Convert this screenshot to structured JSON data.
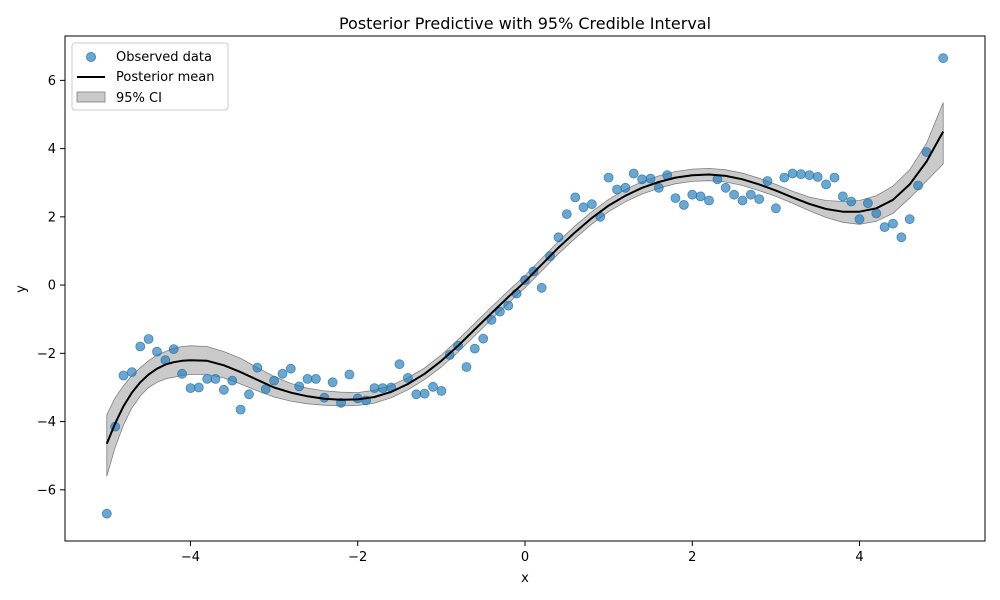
{
  "chart_data": {
    "type": "scatter",
    "title": "Posterior Predictive with 95% Credible Interval",
    "xlabel": "x",
    "ylabel": "y",
    "xlim": [
      -5.5,
      5.5
    ],
    "ylim": [
      -7.5,
      7.3
    ],
    "grid": false,
    "legend_position": "top-left",
    "x_ticks": [
      -4,
      -2,
      0,
      2,
      4
    ],
    "y_ticks": [
      -6,
      -4,
      -2,
      0,
      2,
      4,
      6
    ],
    "x_tick_labels": [
      "−4",
      "−2",
      "0",
      "2",
      "4"
    ],
    "y_tick_labels": [
      "−6",
      "−4",
      "−2",
      "0",
      "2",
      "4",
      "6"
    ],
    "legend": [
      {
        "label": "Observed data",
        "kind": "marker"
      },
      {
        "label": "Posterior mean",
        "kind": "line"
      },
      {
        "label": "95% CI",
        "kind": "patch"
      }
    ],
    "colors": {
      "observed": "#1f77b4",
      "mean": "#000000",
      "ci_fill": "#bdbdbd",
      "ci_edge": "#808080"
    },
    "observed": {
      "name": "Observed data",
      "points": [
        [
          -5.0,
          -6.7
        ],
        [
          -4.9,
          -4.15
        ],
        [
          -4.8,
          -2.65
        ],
        [
          -4.7,
          -2.55
        ],
        [
          -4.6,
          -1.8
        ],
        [
          -4.5,
          -1.58
        ],
        [
          -4.4,
          -1.95
        ],
        [
          -4.3,
          -2.2
        ],
        [
          -4.2,
          -1.88
        ],
        [
          -4.1,
          -2.6
        ],
        [
          -4.0,
          -3.02
        ],
        [
          -3.9,
          -3.0
        ],
        [
          -3.8,
          -2.75
        ],
        [
          -3.7,
          -2.75
        ],
        [
          -3.6,
          -3.07
        ],
        [
          -3.5,
          -2.8
        ],
        [
          -3.4,
          -3.65
        ],
        [
          -3.3,
          -3.2
        ],
        [
          -3.2,
          -2.42
        ],
        [
          -3.1,
          -3.05
        ],
        [
          -3.0,
          -2.8
        ],
        [
          -2.9,
          -2.6
        ],
        [
          -2.8,
          -2.45
        ],
        [
          -2.7,
          -2.97
        ],
        [
          -2.6,
          -2.75
        ],
        [
          -2.5,
          -2.75
        ],
        [
          -2.4,
          -3.3
        ],
        [
          -2.3,
          -2.85
        ],
        [
          -2.2,
          -3.45
        ],
        [
          -2.1,
          -2.62
        ],
        [
          -2.0,
          -3.32
        ],
        [
          -1.9,
          -3.38
        ],
        [
          -1.8,
          -3.02
        ],
        [
          -1.7,
          -3.02
        ],
        [
          -1.6,
          -3.0
        ],
        [
          -1.5,
          -2.32
        ],
        [
          -1.4,
          -2.72
        ],
        [
          -1.3,
          -3.2
        ],
        [
          -1.2,
          -3.18
        ],
        [
          -1.1,
          -2.98
        ],
        [
          -1.0,
          -3.1
        ],
        [
          -0.9,
          -2.05
        ],
        [
          -0.8,
          -1.78
        ],
        [
          -0.7,
          -2.4
        ],
        [
          -0.6,
          -1.86
        ],
        [
          -0.5,
          -1.57
        ],
        [
          -0.4,
          -1.02
        ],
        [
          -0.3,
          -0.78
        ],
        [
          -0.2,
          -0.6
        ],
        [
          -0.1,
          -0.25
        ],
        [
          0.0,
          0.15
        ],
        [
          0.1,
          0.4
        ],
        [
          0.2,
          -0.08
        ],
        [
          0.3,
          0.85
        ],
        [
          0.4,
          1.4
        ],
        [
          0.5,
          2.08
        ],
        [
          0.6,
          2.57
        ],
        [
          0.7,
          2.28
        ],
        [
          0.8,
          2.37
        ],
        [
          0.9,
          2.0
        ],
        [
          1.0,
          3.15
        ],
        [
          1.1,
          2.8
        ],
        [
          1.2,
          2.85
        ],
        [
          1.3,
          3.27
        ],
        [
          1.4,
          3.1
        ],
        [
          1.5,
          3.12
        ],
        [
          1.6,
          2.85
        ],
        [
          1.7,
          3.22
        ],
        [
          1.8,
          2.55
        ],
        [
          1.9,
          2.35
        ],
        [
          2.0,
          2.65
        ],
        [
          2.1,
          2.6
        ],
        [
          2.2,
          2.48
        ],
        [
          2.3,
          3.1
        ],
        [
          2.4,
          2.85
        ],
        [
          2.5,
          2.65
        ],
        [
          2.6,
          2.48
        ],
        [
          2.7,
          2.65
        ],
        [
          2.8,
          2.52
        ],
        [
          2.9,
          3.05
        ],
        [
          3.0,
          2.25
        ],
        [
          3.1,
          3.15
        ],
        [
          3.2,
          3.27
        ],
        [
          3.3,
          3.25
        ],
        [
          3.4,
          3.22
        ],
        [
          3.5,
          3.17
        ],
        [
          3.6,
          2.95
        ],
        [
          3.7,
          3.15
        ],
        [
          3.8,
          2.6
        ],
        [
          3.9,
          2.45
        ],
        [
          4.0,
          1.93
        ],
        [
          4.1,
          2.4
        ],
        [
          4.2,
          2.1
        ],
        [
          4.3,
          1.7
        ],
        [
          4.4,
          1.8
        ],
        [
          4.5,
          1.4
        ],
        [
          4.6,
          1.93
        ],
        [
          4.7,
          2.92
        ],
        [
          4.8,
          3.9
        ],
        [
          5.0,
          6.65
        ]
      ]
    },
    "posterior_mean": {
      "name": "Posterior mean",
      "points": [
        [
          -5.0,
          -4.65
        ],
        [
          -4.9,
          -4.05
        ],
        [
          -4.8,
          -3.55
        ],
        [
          -4.7,
          -3.15
        ],
        [
          -4.6,
          -2.85
        ],
        [
          -4.5,
          -2.62
        ],
        [
          -4.4,
          -2.45
        ],
        [
          -4.3,
          -2.33
        ],
        [
          -4.2,
          -2.26
        ],
        [
          -4.1,
          -2.22
        ],
        [
          -4.0,
          -2.2
        ],
        [
          -3.8,
          -2.22
        ],
        [
          -3.6,
          -2.35
        ],
        [
          -3.4,
          -2.55
        ],
        [
          -3.2,
          -2.78
        ],
        [
          -3.0,
          -3.0
        ],
        [
          -2.8,
          -3.15
        ],
        [
          -2.6,
          -3.26
        ],
        [
          -2.4,
          -3.33
        ],
        [
          -2.2,
          -3.36
        ],
        [
          -2.0,
          -3.35
        ],
        [
          -1.8,
          -3.28
        ],
        [
          -1.6,
          -3.13
        ],
        [
          -1.4,
          -2.9
        ],
        [
          -1.2,
          -2.6
        ],
        [
          -1.0,
          -2.22
        ],
        [
          -0.8,
          -1.78
        ],
        [
          -0.6,
          -1.3
        ],
        [
          -0.4,
          -0.82
        ],
        [
          -0.2,
          -0.35
        ],
        [
          0.0,
          0.1
        ],
        [
          0.2,
          0.6
        ],
        [
          0.4,
          1.1
        ],
        [
          0.6,
          1.55
        ],
        [
          0.8,
          1.97
        ],
        [
          1.0,
          2.33
        ],
        [
          1.2,
          2.62
        ],
        [
          1.4,
          2.85
        ],
        [
          1.6,
          3.02
        ],
        [
          1.8,
          3.15
        ],
        [
          2.0,
          3.22
        ],
        [
          2.2,
          3.24
        ],
        [
          2.4,
          3.2
        ],
        [
          2.6,
          3.1
        ],
        [
          2.8,
          2.95
        ],
        [
          3.0,
          2.77
        ],
        [
          3.2,
          2.57
        ],
        [
          3.4,
          2.38
        ],
        [
          3.6,
          2.23
        ],
        [
          3.8,
          2.15
        ],
        [
          4.0,
          2.15
        ],
        [
          4.2,
          2.25
        ],
        [
          4.4,
          2.5
        ],
        [
          4.6,
          2.95
        ],
        [
          4.8,
          3.62
        ],
        [
          5.0,
          4.5
        ]
      ]
    },
    "ci_95": {
      "name": "95% CI",
      "x": [
        -5.0,
        -4.9,
        -4.8,
        -4.7,
        -4.6,
        -4.5,
        -4.4,
        -4.3,
        -4.2,
        -4.1,
        -4.0,
        -3.8,
        -3.6,
        -3.4,
        -3.2,
        -3.0,
        -2.8,
        -2.6,
        -2.4,
        -2.2,
        -2.0,
        -1.8,
        -1.6,
        -1.4,
        -1.2,
        -1.0,
        -0.8,
        -0.6,
        -0.4,
        -0.2,
        0.0,
        0.2,
        0.4,
        0.6,
        0.8,
        1.0,
        1.2,
        1.4,
        1.6,
        1.8,
        2.0,
        2.2,
        2.4,
        2.6,
        2.8,
        3.0,
        3.2,
        3.4,
        3.6,
        3.8,
        4.0,
        4.2,
        4.4,
        4.6,
        4.8,
        5.0
      ],
      "lower": [
        -5.6,
        -4.75,
        -4.1,
        -3.6,
        -3.25,
        -3.0,
        -2.85,
        -2.75,
        -2.7,
        -2.65,
        -2.62,
        -2.62,
        -2.72,
        -2.9,
        -3.1,
        -3.28,
        -3.4,
        -3.48,
        -3.52,
        -3.54,
        -3.53,
        -3.46,
        -3.3,
        -3.07,
        -2.77,
        -2.4,
        -1.96,
        -1.48,
        -1.0,
        -0.53,
        -0.08,
        0.42,
        0.92,
        1.37,
        1.79,
        2.15,
        2.44,
        2.67,
        2.84,
        2.97,
        3.04,
        3.06,
        3.02,
        2.92,
        2.77,
        2.6,
        2.4,
        2.18,
        1.98,
        1.84,
        1.78,
        1.87,
        2.1,
        2.55,
        3.05,
        3.55
      ],
      "upper": [
        -3.8,
        -3.3,
        -2.95,
        -2.65,
        -2.42,
        -2.22,
        -2.05,
        -1.95,
        -1.85,
        -1.8,
        -1.78,
        -1.8,
        -1.95,
        -2.15,
        -2.42,
        -2.68,
        -2.88,
        -3.02,
        -3.1,
        -3.14,
        -3.15,
        -3.08,
        -2.94,
        -2.72,
        -2.43,
        -2.05,
        -1.6,
        -1.12,
        -0.64,
        -0.17,
        0.28,
        0.78,
        1.28,
        1.74,
        2.15,
        2.51,
        2.8,
        3.03,
        3.2,
        3.33,
        3.4,
        3.42,
        3.38,
        3.28,
        3.13,
        2.95,
        2.75,
        2.58,
        2.48,
        2.45,
        2.48,
        2.62,
        2.9,
        3.38,
        4.15,
        5.35
      ]
    }
  }
}
